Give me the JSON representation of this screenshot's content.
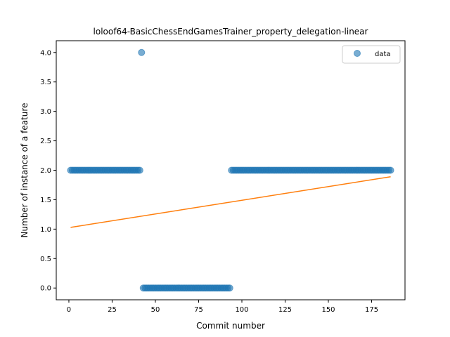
{
  "chart_data": {
    "type": "scatter",
    "title": "loloof64-BasicChessEndGamesTrainer_property_delegation-linear",
    "xlabel": "Commit number",
    "ylabel": "Number of instance of a feature",
    "xlim": [
      -7.3,
      194.3
    ],
    "ylim": [
      -0.2,
      4.2
    ],
    "xticks": [
      0,
      25,
      50,
      75,
      100,
      125,
      150,
      175
    ],
    "yticks": [
      0.0,
      0.5,
      1.0,
      1.5,
      2.0,
      2.5,
      3.0,
      3.5,
      4.0
    ],
    "xtick_labels": [
      "0",
      "25",
      "50",
      "75",
      "100",
      "125",
      "150",
      "175"
    ],
    "ytick_labels": [
      "0.0",
      "0.5",
      "1.0",
      "1.5",
      "2.0",
      "2.5",
      "3.0",
      "3.5",
      "4.0"
    ],
    "legend": {
      "position": "top-right",
      "entries": [
        "data"
      ]
    },
    "grid": false,
    "series": [
      {
        "name": "data",
        "kind": "scatter",
        "color": "#1f77b4",
        "segments": [
          {
            "x_start": 1,
            "x_end": 41,
            "y": 2
          },
          {
            "x_start": 42,
            "x_end": 42,
            "y": 4
          },
          {
            "x_start": 43,
            "x_end": 93,
            "y": 0
          },
          {
            "x_start": 94,
            "x_end": 186,
            "y": 2
          }
        ]
      },
      {
        "kind": "line",
        "color": "#ff7f0e",
        "x": [
          1,
          186
        ],
        "y": [
          1.03,
          1.89
        ]
      }
    ]
  }
}
